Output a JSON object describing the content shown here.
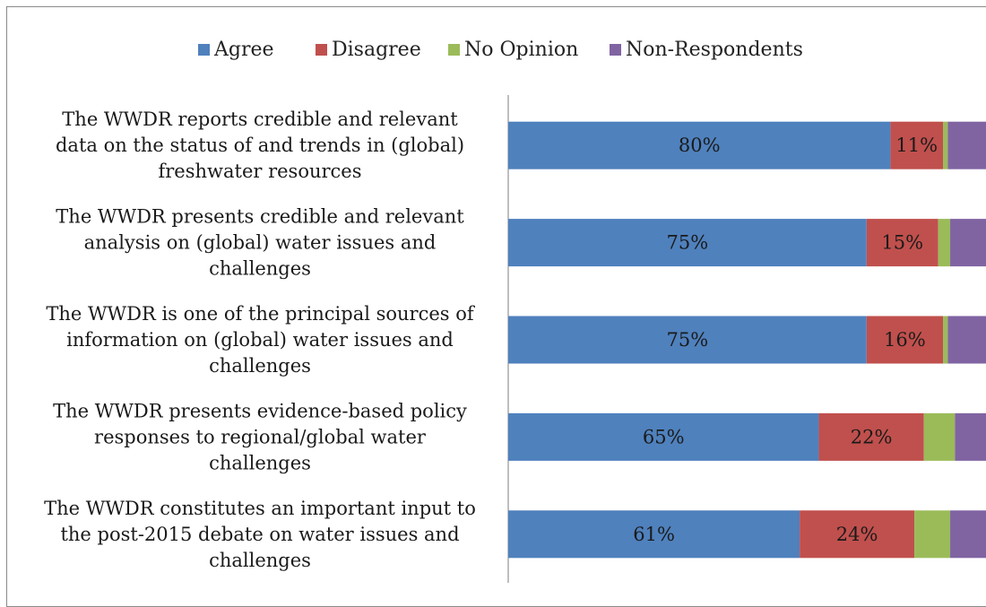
{
  "chart_data": {
    "type": "bar",
    "orientation": "horizontal",
    "stacked": true,
    "percent_stacked": true,
    "title": "",
    "xlabel": "",
    "ylabel": "",
    "xlim": [
      0,
      100
    ],
    "grid": false,
    "legend_position": "top",
    "categories": [
      [
        "The WWDR reports credible and relevant",
        "data on the status of and trends in (global)",
        "freshwater resources"
      ],
      [
        "The WWDR presents credible and relevant",
        "analysis on (global) water issues and",
        "challenges"
      ],
      [
        "The WWDR is one of the principal sources of",
        "information on (global) water issues and",
        "challenges"
      ],
      [
        "The WWDR presents evidence-based policy",
        "responses to regional/global water",
        "challenges"
      ],
      [
        "The WWDR constitutes an important input to",
        "the post-2015 debate on water issues and",
        "challenges"
      ]
    ],
    "series": [
      {
        "name": "Agree",
        "color": "#4f81bd",
        "values": [
          80,
          75,
          75,
          65,
          61
        ],
        "labels": [
          "80%",
          "75%",
          "75%",
          "65%",
          "61%"
        ]
      },
      {
        "name": "Disagree",
        "color": "#c0504d",
        "values": [
          11,
          15,
          16,
          22,
          24
        ],
        "labels": [
          "11%",
          "15%",
          "16%",
          "22%",
          "24%"
        ]
      },
      {
        "name": "No Opinion",
        "color": "#9bbb59",
        "values": [
          1,
          2.5,
          1,
          6.5,
          7.5
        ],
        "labels": [
          "",
          "",
          "",
          "",
          ""
        ]
      },
      {
        "name": "Non-Respondents",
        "color": "#8064a2",
        "values": [
          8,
          7.5,
          8,
          6.5,
          7.5
        ],
        "labels": [
          "",
          "",
          "",
          "",
          ""
        ]
      }
    ]
  }
}
